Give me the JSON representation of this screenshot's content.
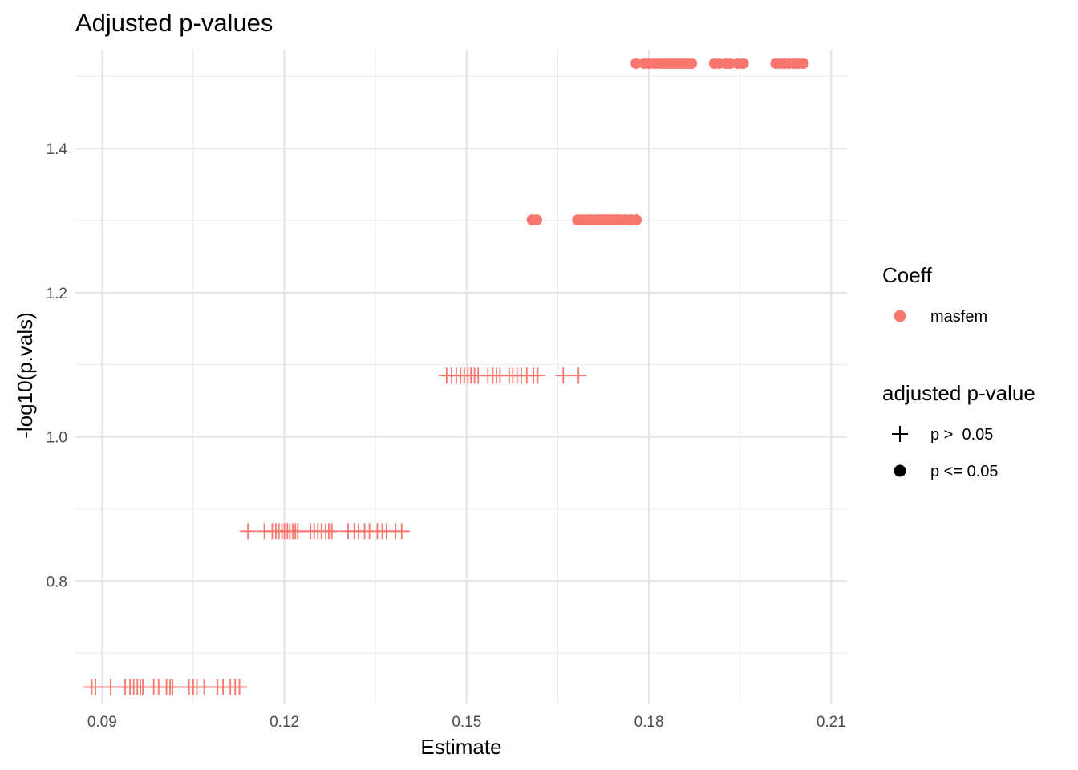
{
  "chart_data": {
    "type": "scatter",
    "title": "Adjusted p-values",
    "xlabel": "Estimate",
    "ylabel": "-log10(p.vals)",
    "xlim": [
      0.0856,
      0.2126
    ],
    "ylim": [
      0.629,
      1.537
    ],
    "x_ticks": [
      0.09,
      0.12,
      0.15,
      0.18,
      0.21
    ],
    "x_tick_labels": [
      "0.09",
      "0.12",
      "0.15",
      "0.18",
      "0.21"
    ],
    "y_ticks": [
      0.8,
      1.0,
      1.2,
      1.4
    ],
    "y_tick_labels": [
      "0.8",
      "1.0",
      "1.2",
      "1.4"
    ],
    "grid": true,
    "legend_position": "right",
    "series_color": "#F8766D",
    "legend": {
      "color_title": "Coeff",
      "color_items": [
        {
          "label": "masfem",
          "color": "#F8766D"
        }
      ],
      "shape_title": "adjusted p-value",
      "shape_items": [
        {
          "label": "p >  0.05",
          "shape": "plus"
        },
        {
          "label": "p <= 0.05",
          "shape": "circle"
        }
      ]
    },
    "series": [
      {
        "shape": "plus",
        "y": 0.653,
        "x": [
          0.0883,
          0.0889,
          0.0914,
          0.0938,
          0.0946,
          0.0952,
          0.0958,
          0.0963,
          0.0967,
          0.0985,
          0.0993,
          0.1006,
          0.1012,
          0.1016,
          0.1043,
          0.105,
          0.1056,
          0.1068,
          0.109,
          0.1099,
          0.1111,
          0.1119,
          0.1126
        ]
      },
      {
        "shape": "plus",
        "y": 0.869,
        "x": [
          0.114,
          0.1167,
          0.118,
          0.1186,
          0.1191,
          0.1196,
          0.12,
          0.1205,
          0.1209,
          0.1214,
          0.1218,
          0.1222,
          0.1243,
          0.1249,
          0.1255,
          0.1261,
          0.1268,
          0.1273,
          0.1278,
          0.1305,
          0.1315,
          0.1322,
          0.1332,
          0.134,
          0.1353,
          0.1361,
          0.1368,
          0.1383,
          0.1393
        ]
      },
      {
        "shape": "plus",
        "y": 1.085,
        "x": [
          0.1467,
          0.1475,
          0.1483,
          0.149,
          0.1496,
          0.1502,
          0.1507,
          0.1513,
          0.1519,
          0.1535,
          0.1543,
          0.1549,
          0.1555,
          0.157,
          0.1576,
          0.1583,
          0.159,
          0.1599,
          0.161,
          0.1617,
          0.1659,
          0.1684
        ]
      },
      {
        "shape": "circle",
        "y": 1.301,
        "x": [
          0.1608,
          0.1615,
          0.1683,
          0.169,
          0.1698,
          0.1705,
          0.1713,
          0.172,
          0.1727,
          0.1734,
          0.1741,
          0.1748,
          0.1755,
          0.1762,
          0.177,
          0.1779
        ]
      },
      {
        "shape": "circle",
        "y": 1.518,
        "x": [
          0.1779,
          0.1792,
          0.18,
          0.1808,
          0.1815,
          0.1822,
          0.1828,
          0.1834,
          0.184,
          0.1846,
          0.1852,
          0.1858,
          0.1864,
          0.187,
          0.1908,
          0.1916,
          0.1927,
          0.1934,
          0.1946,
          0.1955,
          0.2009,
          0.2016,
          0.2023,
          0.203,
          0.2039,
          0.2046,
          0.2054
        ]
      }
    ]
  }
}
